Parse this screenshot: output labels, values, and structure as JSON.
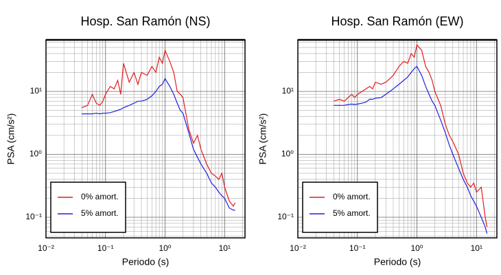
{
  "chart_data": [
    {
      "type": "line",
      "title": "Hosp. San Ramón (NS)",
      "x_label": "Periodo (s)",
      "y_label": "PSA (cm/s²)",
      "x_scale": "log",
      "y_scale": "log",
      "grid": true,
      "legend": "lower left",
      "xlim": [
        0.01,
        22
      ],
      "ylim": [
        0.047,
        66
      ],
      "xticks": [
        {
          "value": 0.01,
          "label": "10⁻²"
        },
        {
          "value": 0.1,
          "label": "10⁻¹"
        },
        {
          "value": 1,
          "label": "10⁰"
        },
        {
          "value": 10,
          "label": "10¹"
        }
      ],
      "yticks": [
        {
          "value": 0.1,
          "label": "10⁻¹"
        },
        {
          "value": 1,
          "label": "10⁰"
        },
        {
          "value": 10,
          "label": "10¹"
        }
      ],
      "x": [
        0.04,
        0.05,
        0.06,
        0.07,
        0.08,
        0.09,
        0.1,
        0.12,
        0.14,
        0.16,
        0.18,
        0.2,
        0.25,
        0.3,
        0.35,
        0.4,
        0.5,
        0.6,
        0.7,
        0.8,
        0.9,
        1.0,
        1.2,
        1.4,
        1.6,
        1.8,
        2,
        2.5,
        3,
        3.5,
        4,
        5,
        6,
        7,
        8,
        9,
        10,
        12,
        14,
        15
      ],
      "series": [
        {
          "name": "0% amort.",
          "color": "#e41a1c",
          "values": [
            5.5,
            6,
            9,
            6.5,
            6,
            7,
            9,
            12,
            11,
            15,
            9,
            28,
            14,
            20,
            13,
            20,
            18,
            25,
            20,
            35,
            28,
            45,
            30,
            20,
            10,
            9,
            8,
            2.5,
            1.5,
            2,
            1.2,
            0.7,
            0.5,
            0.45,
            0.4,
            0.5,
            0.3,
            0.18,
            0.15,
            0.17
          ]
        },
        {
          "name": "5% amort.",
          "color": "#1f1fe0",
          "values": [
            4.4,
            4.4,
            4.4,
            4.5,
            4.4,
            4.5,
            4.5,
            4.6,
            4.8,
            5,
            5.2,
            5.5,
            6,
            6.5,
            7,
            7,
            7.5,
            8.5,
            10,
            12,
            13,
            16,
            12,
            9,
            6.5,
            5,
            4.5,
            2.2,
            1.2,
            0.9,
            0.7,
            0.5,
            0.35,
            0.3,
            0.25,
            0.22,
            0.2,
            0.14,
            0.13,
            0.13
          ]
        }
      ]
    },
    {
      "type": "line",
      "title": "Hosp. San Ramón (EW)",
      "x_label": "Periodo (s)",
      "y_label": "PSA (cm/s²)",
      "x_scale": "log",
      "y_scale": "log",
      "grid": true,
      "legend": "lower left",
      "xlim": [
        0.01,
        22
      ],
      "ylim": [
        0.047,
        66
      ],
      "xticks": [
        {
          "value": 0.01,
          "label": "10⁻²"
        },
        {
          "value": 0.1,
          "label": "10⁻¹"
        },
        {
          "value": 1,
          "label": "10⁰"
        },
        {
          "value": 10,
          "label": "10¹"
        }
      ],
      "yticks": [
        {
          "value": 0.1,
          "label": "10⁻¹"
        },
        {
          "value": 1,
          "label": "10⁰"
        },
        {
          "value": 10,
          "label": "10¹"
        }
      ],
      "x": [
        0.04,
        0.05,
        0.06,
        0.07,
        0.08,
        0.09,
        0.1,
        0.12,
        0.14,
        0.16,
        0.18,
        0.2,
        0.25,
        0.3,
        0.35,
        0.4,
        0.5,
        0.6,
        0.7,
        0.8,
        0.9,
        1.0,
        1.2,
        1.4,
        1.6,
        1.8,
        2,
        2.5,
        3,
        3.5,
        4,
        5,
        6,
        7,
        8,
        9,
        10,
        12,
        14,
        15
      ],
      "series": [
        {
          "name": "0% amort.",
          "color": "#e41a1c",
          "values": [
            7,
            7.5,
            7,
            8,
            9,
            8,
            9,
            10,
            11,
            12,
            11,
            14,
            13,
            14,
            16,
            18,
            25,
            30,
            28,
            40,
            35,
            55,
            45,
            25,
            20,
            15,
            10,
            6,
            3,
            2,
            1.6,
            1,
            0.5,
            0.35,
            0.3,
            0.35,
            0.25,
            0.3,
            0.1,
            0.07
          ]
        },
        {
          "name": "5% amort.",
          "color": "#1f1fe0",
          "values": [
            6,
            6,
            6,
            6.2,
            6.3,
            6.2,
            6.3,
            6.5,
            6.8,
            7.5,
            7.5,
            7.8,
            8,
            9,
            10,
            11,
            13,
            15,
            17,
            20,
            23,
            25,
            18,
            12,
            9,
            7,
            6,
            3.5,
            2.2,
            1.4,
            1,
            0.6,
            0.4,
            0.3,
            0.22,
            0.18,
            0.15,
            0.1,
            0.07,
            0.055
          ]
        }
      ]
    }
  ]
}
